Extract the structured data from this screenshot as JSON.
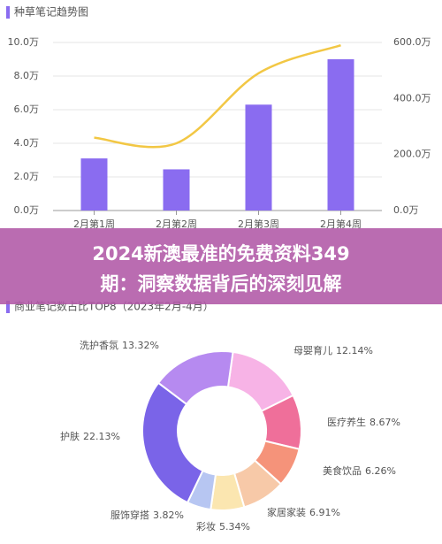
{
  "chart_data": [
    {
      "type": "bar-line",
      "title": "种草笔记趋势图",
      "categories": [
        "2月第1周",
        "2月第2周",
        "2月第3周",
        "2月第4周"
      ],
      "series": [
        {
          "kind": "bar",
          "color": "#8a6cf0",
          "values": [
            3.1,
            2.45,
            6.3,
            9.0
          ]
        },
        {
          "kind": "line",
          "axis": "y2",
          "color": "#f2c744",
          "values": [
            260,
            240,
            490,
            590
          ]
        }
      ],
      "ylim": [
        0,
        10
      ],
      "yticks": [
        {
          "value": 0,
          "label": "0.0万"
        },
        {
          "value": 2,
          "label": "2.0万"
        },
        {
          "value": 4,
          "label": "4.0万"
        },
        {
          "value": 6,
          "label": "6.0万"
        },
        {
          "value": 8,
          "label": "8.0万"
        },
        {
          "value": 10,
          "label": "10.0万"
        }
      ],
      "y2lim": [
        0,
        600
      ],
      "y2ticks": [
        {
          "value": 0,
          "label": "0.0万"
        },
        {
          "value": 200,
          "label": "200.0万"
        },
        {
          "value": 400,
          "label": "400.0万"
        },
        {
          "value": 600,
          "label": "600.0万"
        }
      ],
      "grid": true
    },
    {
      "type": "donut",
      "title": "商业笔记数占比TOP8（2023年2月-4月）",
      "categories": [
        "母婴育儿",
        "医疗养生",
        "美食饮品",
        "家居家装",
        "彩妆",
        "服饰穿搭",
        "护肤",
        "洗护香氛"
      ],
      "values": [
        12.14,
        8.67,
        6.26,
        6.91,
        5.34,
        3.82,
        22.13,
        13.32
      ],
      "value_labels": [
        "12.14%",
        "8.67%",
        "6.26%",
        "6.91%",
        "5.34%",
        "3.82%",
        "22.13%",
        "13.32%"
      ],
      "colors": [
        "#f7b3e6",
        "#ef6f9a",
        "#f5937a",
        "#f7c9a8",
        "#fbe6b0",
        "#b7c6f2",
        "#7a64e8",
        "#b68af0"
      ]
    }
  ],
  "banner": {
    "lines": [
      "2024新澳最准的免费资料349",
      "期：洞察数据背后的深刻见解"
    ]
  }
}
